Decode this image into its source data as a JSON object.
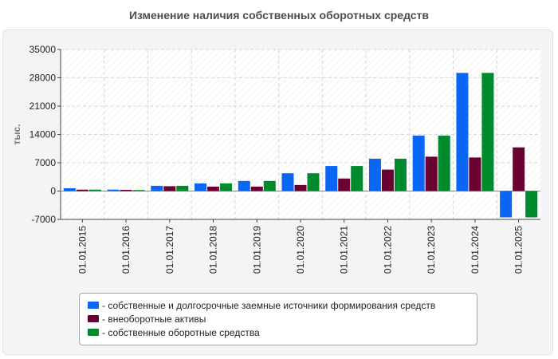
{
  "chart_data": {
    "type": "bar",
    "title": "Изменение наличия собственных оборотных средств",
    "ylabel": "тыс.",
    "xlabel": "",
    "ylim": [
      -7000,
      35000
    ],
    "yticks": [
      -7000,
      0,
      7000,
      14000,
      21000,
      28000,
      35000
    ],
    "yticks_labels": [
      "-7000",
      "0",
      "7000",
      "14000",
      "21000",
      "28000",
      "35000"
    ],
    "grid": true,
    "legend_position": "bottom",
    "categories": [
      "01.01.2015",
      "01.01.2016",
      "01.01.2017",
      "01.01.2018",
      "01.01.2019",
      "01.01.2020",
      "01.01.2021",
      "01.01.2022",
      "01.01.2023",
      "01.01.2024",
      "01.01.2025"
    ],
    "series": [
      {
        "name": "- собственные и долгосрочные заемные источники формирования средств",
        "color": "#0a66f5",
        "values": [
          700,
          350,
          1300,
          1900,
          2500,
          4400,
          6200,
          8000,
          13700,
          29200,
          -6500
        ]
      },
      {
        "name": "- внеоборотные активы",
        "color": "#6b0033",
        "values": [
          350,
          300,
          1200,
          1100,
          1100,
          1500,
          3100,
          5300,
          8500,
          8300,
          10800
        ]
      },
      {
        "name": "- собственные оборотные средства",
        "color": "#008a2e",
        "values": [
          350,
          250,
          1300,
          1900,
          2500,
          4400,
          6200,
          8000,
          13700,
          29200,
          -6500
        ]
      }
    ]
  }
}
